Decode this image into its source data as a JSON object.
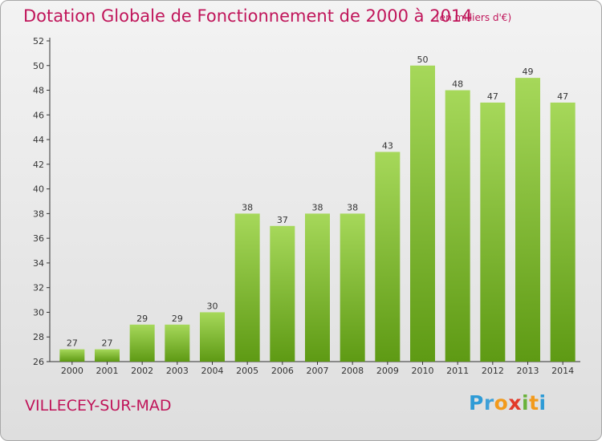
{
  "title": "Dotation Globale de Fonctionnement de 2000 à 2014",
  "unit": "(en milliers d'€)",
  "commune": "VILLECEY-SUR-MAD",
  "logo": {
    "letters": [
      "P",
      "r",
      "o",
      "x",
      "i",
      "t",
      "i"
    ],
    "colors": [
      "#2e9bd6",
      "#3ea0d8",
      "#f29a1c",
      "#e23a2a",
      "#6ab23a",
      "#f29a1c",
      "#2e9bd6"
    ]
  },
  "colors": {
    "accent": "#c0155a",
    "bar_light": "#a6d85a",
    "bar_dark": "#5e9a14"
  },
  "chart_data": {
    "type": "bar",
    "categories": [
      "2000",
      "2001",
      "2002",
      "2003",
      "2004",
      "2005",
      "2006",
      "2007",
      "2008",
      "2009",
      "2010",
      "2011",
      "2012",
      "2013",
      "2014"
    ],
    "values": [
      27,
      27,
      29,
      29,
      30,
      38,
      37,
      38,
      38,
      43,
      50,
      48,
      47,
      49,
      47
    ],
    "yticks": [
      26,
      28,
      30,
      32,
      34,
      36,
      38,
      40,
      42,
      44,
      46,
      48,
      50,
      52
    ],
    "ylim": [
      26,
      52
    ],
    "grid": false,
    "xlabel": "",
    "ylabel": ""
  }
}
